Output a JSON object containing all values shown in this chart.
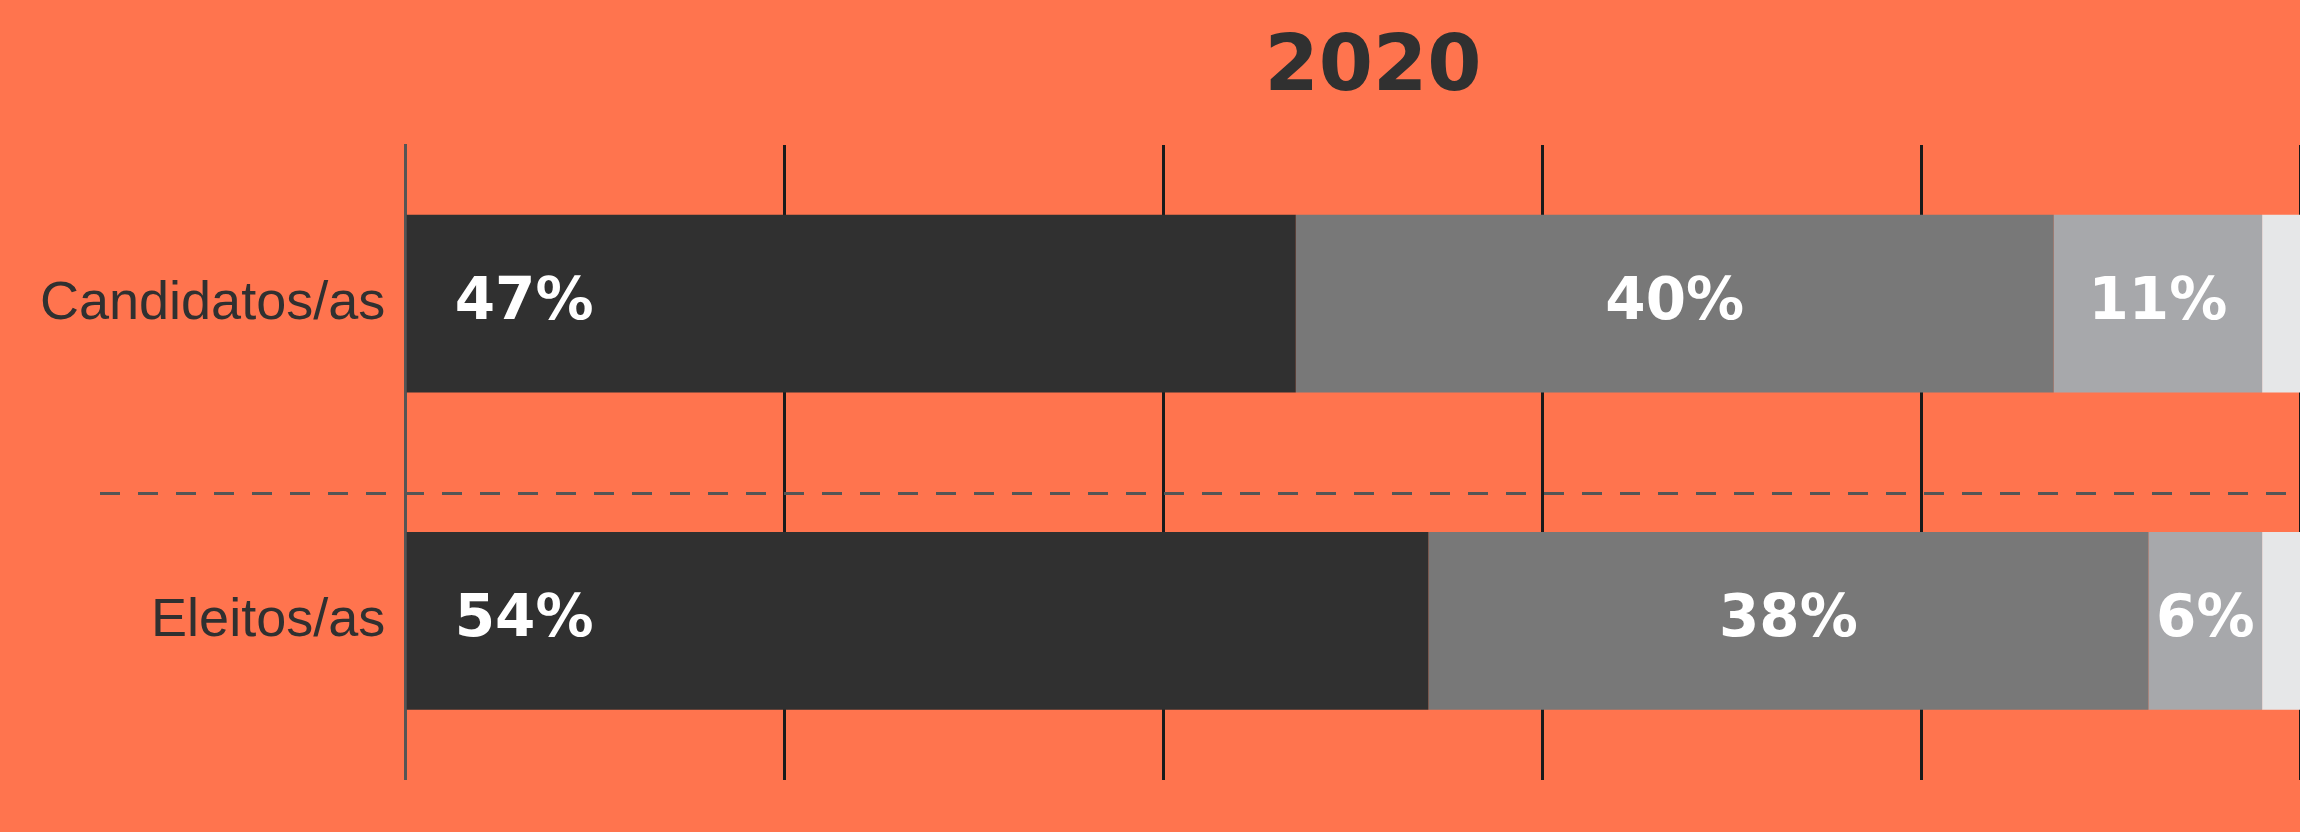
{
  "chart_data": {
    "type": "bar",
    "title": "2020",
    "orientation": "horizontal",
    "stacked": true,
    "categories": [
      "Candidatos/as",
      "Eleitos/as"
    ],
    "series": [
      {
        "color": "#303030",
        "values": [
          47,
          54
        ],
        "value_labels": [
          "47%",
          "54%"
        ]
      },
      {
        "color": "#787878",
        "values": [
          40,
          38
        ],
        "value_labels": [
          "40%",
          "38%"
        ]
      },
      {
        "color": "#a7a8ab",
        "values": [
          11,
          6
        ],
        "value_labels": [
          "11%",
          "6%"
        ]
      },
      {
        "color": "#e6e7e8",
        "values": [
          2,
          2
        ],
        "value_labels": [
          null,
          null
        ]
      }
    ],
    "xlim": [
      0,
      100
    ],
    "xticks": [
      {
        "value": 0,
        "label": null
      },
      {
        "value": 20,
        "label": null
      },
      {
        "value": 40,
        "label": null
      },
      {
        "value": 60,
        "label": null
      },
      {
        "value": 80,
        "label": null
      },
      {
        "value": 100,
        "label": null
      }
    ],
    "grid": "x",
    "tick_labels": "y",
    "legend": false
  }
}
